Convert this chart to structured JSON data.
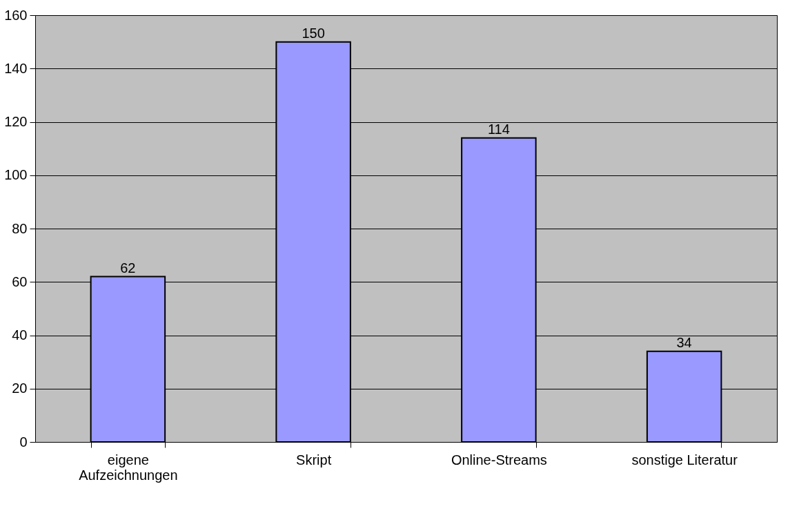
{
  "chart_data": {
    "type": "bar",
    "categories": [
      "eigene\nAufzeichnungen",
      "Skript",
      "Online-Streams",
      "sonstige Literatur"
    ],
    "values": [
      62,
      150,
      114,
      34
    ],
    "color": "#9999ff",
    "ylim": [
      0,
      160
    ],
    "yticks": [
      0,
      20,
      40,
      60,
      80,
      100,
      120,
      140,
      160
    ],
    "grid": "y",
    "data_labels": true
  }
}
